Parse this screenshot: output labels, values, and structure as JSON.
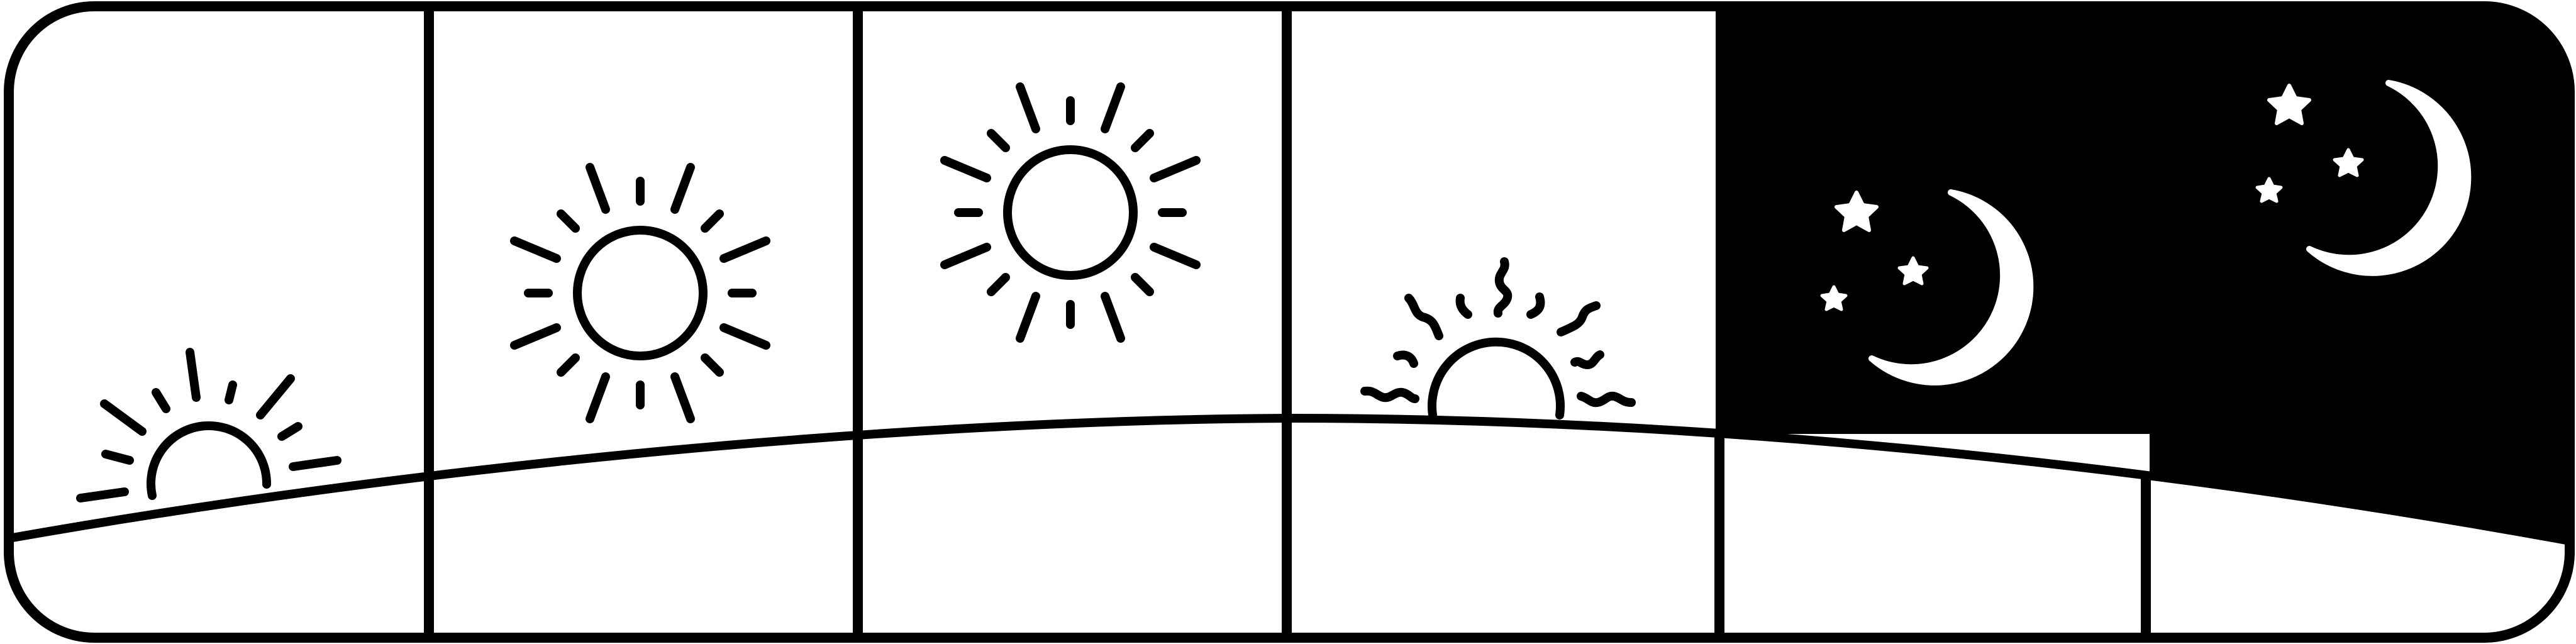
{
  "colors": {
    "ink": "#000000",
    "paper": "#ffffff"
  },
  "banner": {
    "panel_count": 6,
    "panels": [
      {
        "scene": "sunrise",
        "icon": "sunrise-icon",
        "background": "#ffffff"
      },
      {
        "scene": "morning-sun",
        "icon": "sun-icon",
        "background": "#ffffff"
      },
      {
        "scene": "midday-sun",
        "icon": "sun-icon",
        "background": "#ffffff"
      },
      {
        "scene": "sunset",
        "icon": "sunset-icon",
        "background": "#ffffff"
      },
      {
        "scene": "night-moon",
        "icon": "crescent-moon-icon",
        "background": "#000000"
      },
      {
        "scene": "late-night-moon",
        "icon": "crescent-moon-icon",
        "background": "#000000"
      }
    ]
  }
}
